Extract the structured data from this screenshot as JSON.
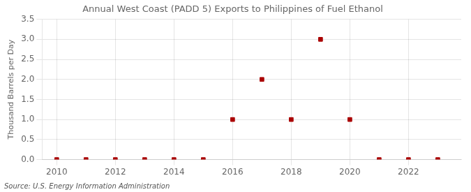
{
  "chart_data": {
    "type": "scatter",
    "title": "Annual West Coast (PADD 5) Exports to Philippines of Fuel Ethanol",
    "ylabel": "Thousand Barrels per Day",
    "annotations": [
      "Source: U.S. Energy Information Administration"
    ],
    "x": [
      2010,
      2011,
      2012,
      2013,
      2014,
      2015,
      2016,
      2017,
      2018,
      2019,
      2020,
      2021,
      2022,
      2023
    ],
    "values": [
      0.0,
      0.0,
      0.0,
      0.0,
      0.0,
      0.0,
      1.0,
      2.0,
      1.0,
      3.0,
      1.0,
      0.0,
      0.0,
      0.0
    ],
    "color": "#aa0000",
    "marker": "square",
    "xlim": [
      2009.5,
      2023.8
    ],
    "xticks": [
      2010,
      2012,
      2014,
      2016,
      2018,
      2020,
      2022
    ],
    "ylim": [
      0,
      3.5
    ],
    "yticks": [
      {
        "value": 0,
        "label": "0.0"
      },
      0.5,
      {
        "value": 1,
        "label": "1.0"
      },
      1.5,
      {
        "value": 2,
        "label": "2.0"
      },
      2.5,
      {
        "value": 3,
        "label": "3.0"
      },
      3.5
    ],
    "grid": true
  }
}
